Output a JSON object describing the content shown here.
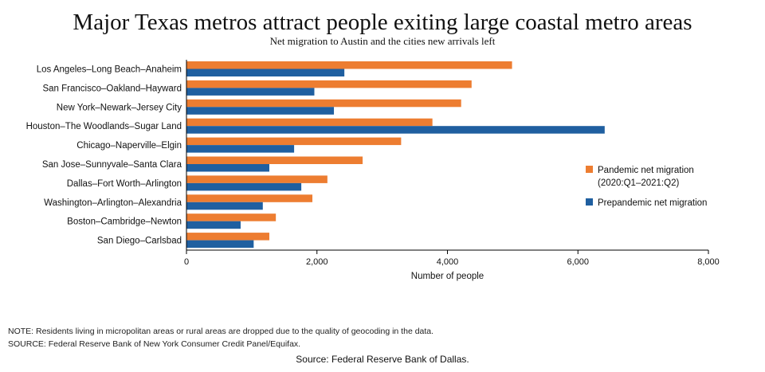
{
  "title": "Major Texas metros attract people exiting large coastal metro areas",
  "subtitle": "Net migration to Austin and the cities new arrivals left",
  "note": "NOTE: Residents living in micropolitan areas or rural areas are dropped due to the quality of geocoding in the data.",
  "source_note": "SOURCE: Federal Reserve Bank of New York Consumer Credit Panel/Equifax.",
  "credit": "Source: Federal Reserve Bank of Dallas.",
  "colors": {
    "pandemic": "#ED7D31",
    "prepandemic": "#1F5FA0"
  },
  "chart_data": {
    "type": "bar",
    "orientation": "horizontal",
    "xlabel": "Number of people",
    "ylabel": "",
    "xlim": [
      0,
      8000
    ],
    "xticks": [
      0,
      2000,
      4000,
      6000,
      8000
    ],
    "xtick_labels": [
      "0",
      "2,000",
      "4,000",
      "6,000",
      "8,000"
    ],
    "grid": false,
    "legend_position": "right",
    "categories": [
      "Los Angeles–Long Beach–Anaheim",
      "San Francisco–Oakland–Hayward",
      "New York–Newark–Jersey City",
      "Houston–The Woodlands–Sugar Land",
      "Chicago–Naperville–Elgin",
      "San Jose–Sunnyvale–Santa Clara",
      "Dallas–Fort Worth–Arlington",
      "Washington–Arlington–Alexandria",
      "Boston–Cambridge–Newton",
      "San Diego–Carlsbad"
    ],
    "series": [
      {
        "name": "Pandemic net migration",
        "name_line2": "(2020:Q1–2021:Q2)",
        "color_key": "pandemic",
        "values": [
          4990,
          4370,
          4210,
          3770,
          3290,
          2700,
          2160,
          1930,
          1370,
          1270
        ]
      },
      {
        "name": "Prepandemic net migration",
        "name_line2": "",
        "color_key": "prepandemic",
        "values": [
          2420,
          1960,
          2260,
          6410,
          1650,
          1270,
          1760,
          1170,
          830,
          1030
        ]
      }
    ]
  }
}
